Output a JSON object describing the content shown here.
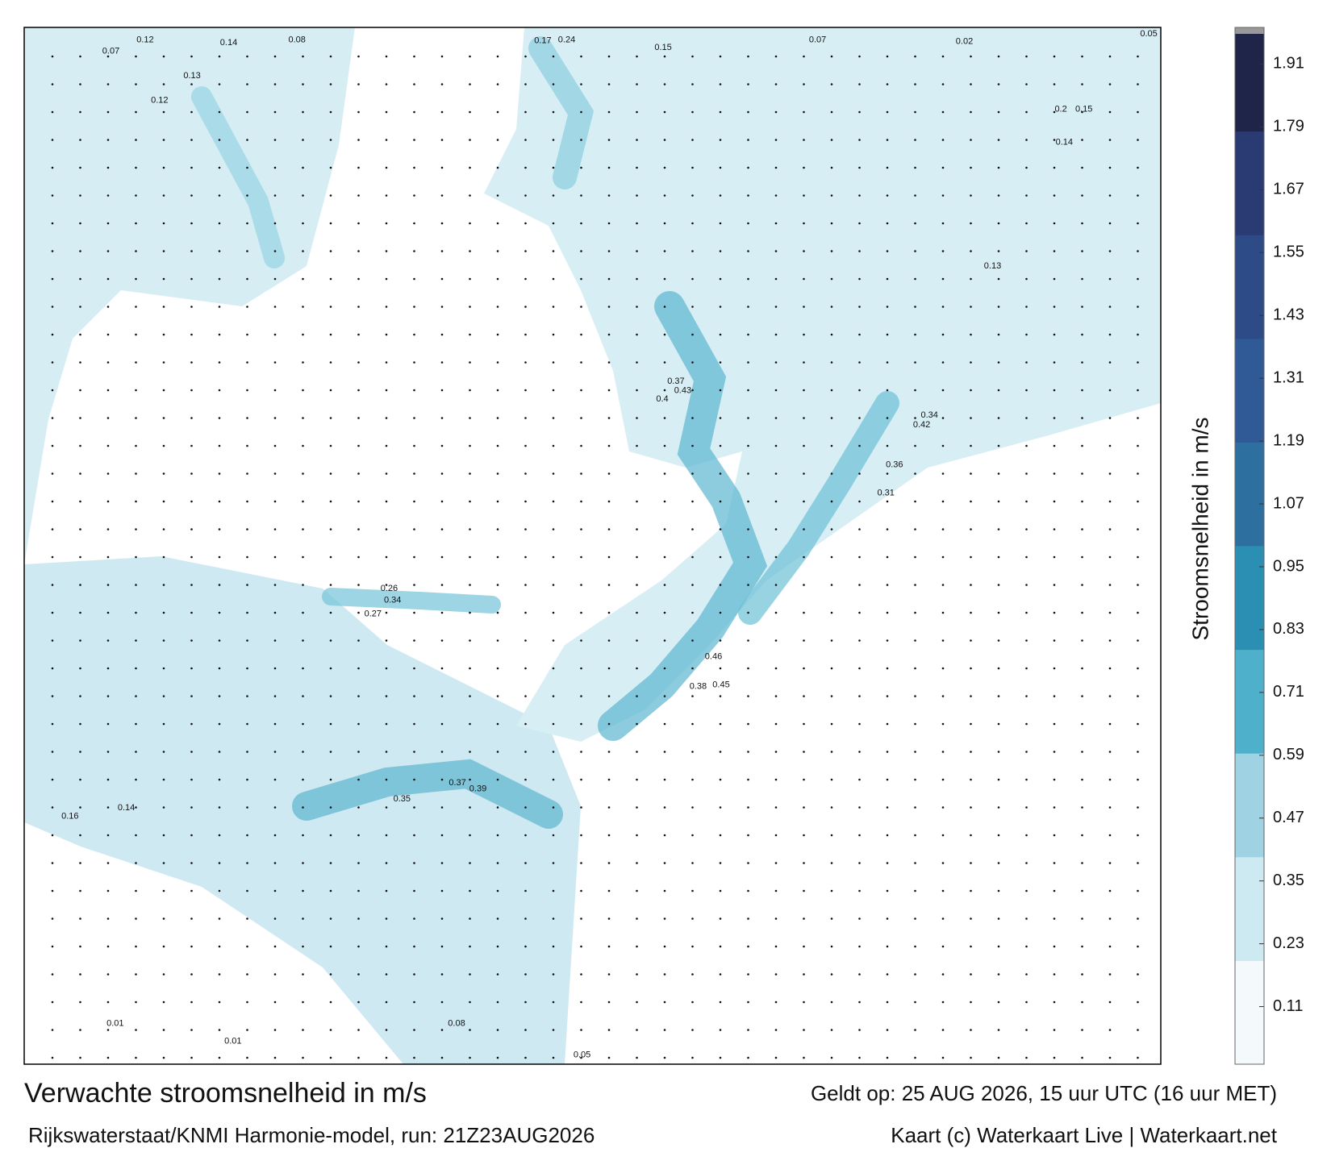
{
  "header": {
    "title": "Verwachte stroomsnelheid in m/s",
    "model": "Rijkswaterstaat/KNMI Harmonie-model, run: 21Z23AUG2026",
    "valid": "Geldt op: 25 AUG 2026, 15 uur UTC (16 uur MET)",
    "credit": "Kaart (c) Waterkaart Live | Waterkaart.net"
  },
  "colorbar": {
    "label": "Stroomsnelheid in m/s",
    "lim": [
      0,
      1.98
    ],
    "ticks": [
      0.11,
      0.23,
      0.35,
      0.47,
      0.59,
      0.71,
      0.83,
      0.95,
      1.07,
      1.19,
      1.31,
      1.43,
      1.55,
      1.67,
      1.79,
      1.91
    ],
    "colors": [
      "#f4fafc",
      "#cde9f1",
      "#9fd3e3",
      "#4fb0cb",
      "#2b8fb3",
      "#2d70a0",
      "#2f5a96",
      "#2d4b86",
      "#2a3a72",
      "#1f2548"
    ]
  },
  "map": {
    "labels": [
      0.07,
      0.12,
      0.14,
      0.08,
      0.17,
      0.24,
      0.15,
      0.07,
      0.02,
      0.05,
      0.13,
      0.12,
      0.43,
      0.37,
      0.4,
      0.26,
      0.34,
      0.27,
      0.35,
      0.37,
      0.39,
      0.46,
      0.45,
      0.38,
      0.36,
      0.31,
      0.34,
      0.42,
      0.16,
      0.14,
      0.01,
      0.01,
      0.05,
      0.08,
      0.13,
      0.14,
      0.2,
      0.15
    ]
  }
}
